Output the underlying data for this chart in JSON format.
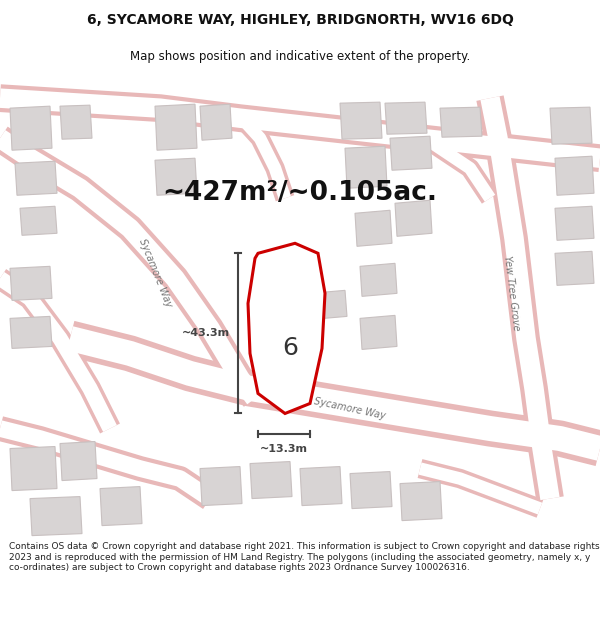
{
  "title_line1": "6, SYCAMORE WAY, HIGHLEY, BRIDGNORTH, WV16 6DQ",
  "title_line2": "Map shows position and indicative extent of the property.",
  "area_text": "~427m²/~0.105ac.",
  "label_6": "6",
  "dim_vertical": "~43.3m",
  "dim_horizontal": "~13.3m",
  "footer_text": "Contains OS data © Crown copyright and database right 2021. This information is subject to Crown copyright and database rights 2023 and is reproduced with the permission of HM Land Registry. The polygons (including the associated geometry, namely x, y co-ordinates) are subject to Crown copyright and database rights 2023 Ordnance Survey 100026316.",
  "bg_color": "#ffffff",
  "map_bg": "#f7f4f4",
  "road_fill": "#ffffff",
  "road_edge": "#e8b8b8",
  "building_fill": "#d8d4d4",
  "building_edge": "#c8c0c0",
  "highlight_fill": "#ffffff",
  "highlight_edge": "#cc0000",
  "street_label_color": "#777777",
  "dim_line_color": "#444444",
  "area_text_color": "#111111",
  "footer_color": "#222222",
  "title_color": "#111111",
  "title_fontsize": 10,
  "subtitle_fontsize": 8.5,
  "area_fontsize": 19,
  "label6_fontsize": 18,
  "dim_fontsize": 8,
  "street_fontsize": 7,
  "footer_fontsize": 6.5
}
